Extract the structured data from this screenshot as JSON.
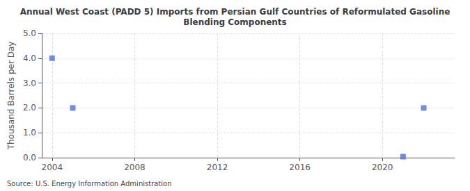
{
  "chart_data": {
    "type": "scatter",
    "title": "Annual West Coast (PADD 5) Imports from Persian Gulf Countries of Reformulated Gasoline\nBlending Components",
    "ylabel": "Thousand Barrels per Day",
    "annotations": [
      "Source: U.S. Energy Information Administration"
    ],
    "x": [
      2004,
      2005,
      2021,
      2022
    ],
    "values": [
      4.0,
      2.0,
      0.04,
      2.0
    ],
    "marker": "square",
    "xlim": [
      2003.5,
      2023.5
    ],
    "xticks": [
      2004,
      2008,
      2012,
      2016,
      2020
    ],
    "ylim": [
      0.0,
      5.0
    ],
    "yticks": [
      {
        "value": 0.0,
        "label": "0.0"
      },
      {
        "value": 1.0,
        "label": "1.0"
      },
      {
        "value": 2.0,
        "label": "2.0"
      },
      {
        "value": 3.0,
        "label": "3.0"
      },
      {
        "value": 4.0,
        "label": "4.0"
      },
      {
        "value": 5.0,
        "label": "5.0"
      }
    ],
    "grid": true
  }
}
